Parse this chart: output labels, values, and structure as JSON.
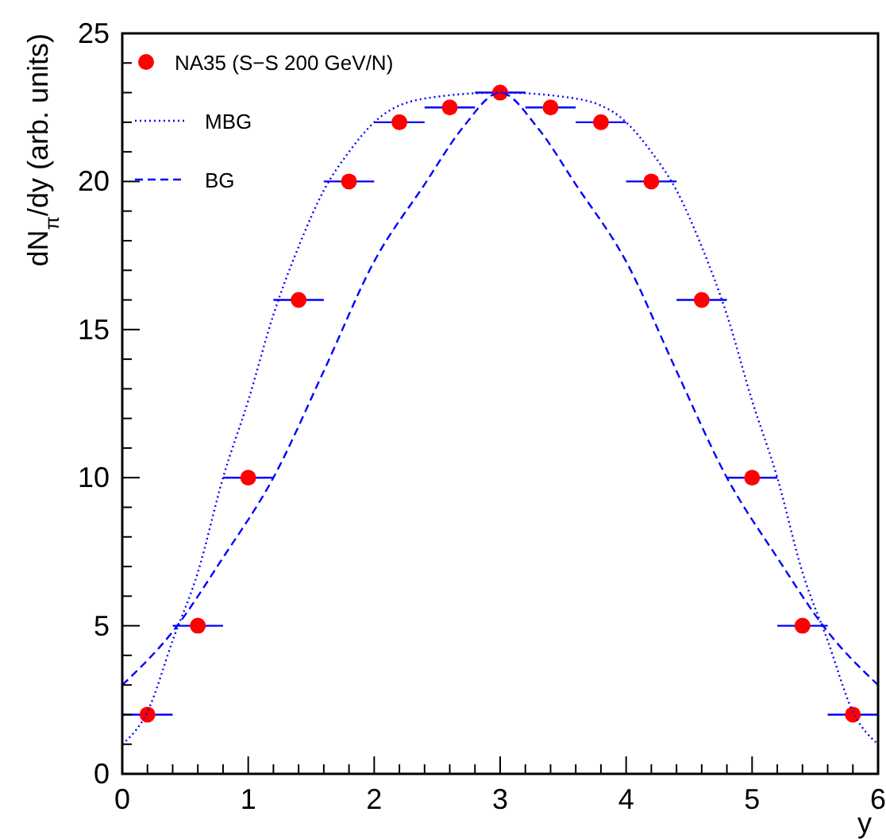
{
  "chart_data": {
    "type": "scatter",
    "xlabel": "y",
    "ylabel": "dN$_{π}$/dy (arb. units)",
    "xlim": [
      0,
      6
    ],
    "ylim": [
      0,
      25
    ],
    "xticks": [
      0,
      {
        "value": 0.2,
        "label": null
      },
      {
        "value": 0.4,
        "label": null
      },
      {
        "value": 0.6,
        "label": null
      },
      {
        "value": 0.8,
        "label": null
      },
      1,
      {
        "value": 1.2,
        "label": null
      },
      {
        "value": 1.4,
        "label": null
      },
      {
        "value": 1.6,
        "label": null
      },
      {
        "value": 1.8,
        "label": null
      },
      2,
      {
        "value": 2.2,
        "label": null
      },
      {
        "value": 2.4,
        "label": null
      },
      {
        "value": 2.6,
        "label": null
      },
      {
        "value": 2.8,
        "label": null
      },
      3,
      {
        "value": 3.2,
        "label": null
      },
      {
        "value": 3.4,
        "label": null
      },
      {
        "value": 3.6,
        "label": null
      },
      {
        "value": 3.8,
        "label": null
      },
      4,
      {
        "value": 4.2,
        "label": null
      },
      {
        "value": 4.4,
        "label": null
      },
      {
        "value": 4.6,
        "label": null
      },
      {
        "value": 4.8,
        "label": null
      },
      5,
      {
        "value": 5.2,
        "label": null
      },
      {
        "value": 5.4,
        "label": null
      },
      {
        "value": 5.6,
        "label": null
      },
      {
        "value": 5.8,
        "label": null
      },
      6
    ],
    "yticks": [
      0,
      {
        "value": 1,
        "label": null
      },
      {
        "value": 2,
        "label": null
      },
      {
        "value": 3,
        "label": null
      },
      {
        "value": 4,
        "label": null
      },
      5,
      {
        "value": 6,
        "label": null
      },
      {
        "value": 7,
        "label": null
      },
      {
        "value": 8,
        "label": null
      },
      {
        "value": 9,
        "label": null
      },
      10,
      {
        "value": 11,
        "label": null
      },
      {
        "value": 12,
        "label": null
      },
      {
        "value": 13,
        "label": null
      },
      {
        "value": 14,
        "label": null
      },
      15,
      {
        "value": 16,
        "label": null
      },
      {
        "value": 17,
        "label": null
      },
      {
        "value": 18,
        "label": null
      },
      {
        "value": 19,
        "label": null
      },
      20,
      {
        "value": 21,
        "label": null
      },
      {
        "value": 22,
        "label": null
      },
      {
        "value": 23,
        "label": null
      },
      {
        "value": 24,
        "label": null
      },
      25
    ],
    "grid": false,
    "legend": "top left",
    "series": [
      {
        "name": "NA35 (S−S 200 GeV/N)",
        "marker": "circle",
        "color": "#ff0000",
        "x": [
          0.2,
          0.6,
          1,
          1.4,
          1.8,
          2.2,
          2.6,
          3,
          3.4,
          3.8,
          4.2,
          4.6,
          5,
          5.4,
          5.8
        ],
        "values": [
          2,
          5,
          10,
          16,
          20,
          22,
          22.5,
          23,
          22.5,
          22,
          20,
          16,
          10,
          5,
          2
        ],
        "xerrors": [
          0.2,
          0.2,
          0.2,
          0.2,
          0.2,
          0.2,
          0.2,
          0.2,
          0.2,
          0.2,
          0.2,
          0.2,
          0.2,
          0.2,
          0.2
        ]
      },
      {
        "name": "MBG",
        "type": "line",
        "color": "#0000ff",
        "line_style": "dotted",
        "x": [
          0,
          0.2,
          0.4,
          0.6,
          0.8,
          1,
          1.2,
          1.4,
          1.6,
          1.8,
          2,
          2.4,
          3,
          3.6,
          4,
          4.2,
          4.4,
          4.6,
          4.8,
          5,
          5.2,
          5.4,
          5.6,
          5.8,
          6
        ],
        "values": [
          1,
          2.1,
          4.5,
          6.8,
          10,
          12.6,
          15.5,
          17.8,
          19.7,
          21,
          22,
          22.8,
          23,
          22.8,
          22,
          21,
          19.7,
          17.8,
          15.5,
          12.6,
          10,
          6.8,
          4.5,
          2.1,
          1
        ]
      },
      {
        "name": "BG",
        "type": "line",
        "color": "#0000ff",
        "line_style": "dashed",
        "x": [
          0,
          0.4,
          0.8,
          1.2,
          1.6,
          2,
          2.4,
          2.7,
          3,
          3.3,
          3.6,
          4,
          4.4,
          4.8,
          5.2,
          5.6,
          6
        ],
        "values": [
          3,
          4.8,
          7.3,
          10,
          13.6,
          17.3,
          19.9,
          21.8,
          23,
          21.8,
          19.9,
          17.3,
          13.6,
          10,
          7.3,
          4.8,
          3
        ]
      }
    ]
  }
}
